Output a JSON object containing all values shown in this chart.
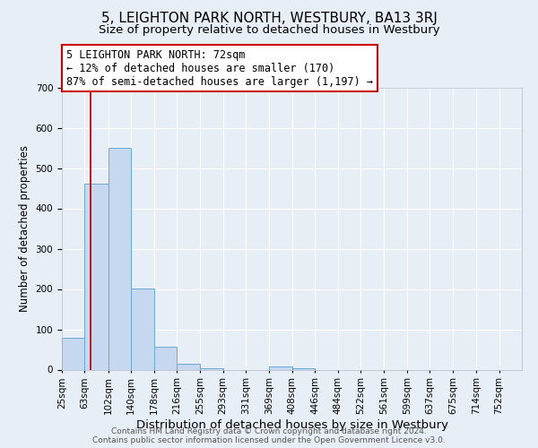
{
  "title": "5, LEIGHTON PARK NORTH, WESTBURY, BA13 3RJ",
  "subtitle": "Size of property relative to detached houses in Westbury",
  "xlabel": "Distribution of detached houses by size in Westbury",
  "ylabel": "Number of detached properties",
  "bin_edges": [
    25,
    63,
    102,
    140,
    178,
    216,
    255,
    293,
    331,
    369,
    408,
    446,
    484,
    522,
    561,
    599,
    637,
    675,
    714,
    752,
    790
  ],
  "bar_heights": [
    78,
    462,
    550,
    202,
    57,
    15,
    3,
    0,
    0,
    7,
    3,
    0,
    0,
    0,
    0,
    0,
    0,
    0,
    0,
    0
  ],
  "bar_color": "#c5d8ef",
  "bar_edge_color": "#6aaad4",
  "property_size": 72,
  "red_line_color": "#cc0000",
  "annotation_text": "5 LEIGHTON PARK NORTH: 72sqm\n← 12% of detached houses are smaller (170)\n87% of semi-detached houses are larger (1,197) →",
  "annotation_box_color": "#ffffff",
  "annotation_box_edge_color": "#cc0000",
  "ylim": [
    0,
    700
  ],
  "yticks": [
    0,
    100,
    200,
    300,
    400,
    500,
    600,
    700
  ],
  "bg_color": "#e8eef5",
  "plot_bg_color": "#e8eef5",
  "grid_color": "#ffffff",
  "footer_line1": "Contains HM Land Registry data © Crown copyright and database right 2024.",
  "footer_line2": "Contains public sector information licensed under the Open Government Licence v3.0.",
  "title_fontsize": 11,
  "subtitle_fontsize": 9.5,
  "xlabel_fontsize": 9.5,
  "ylabel_fontsize": 8.5,
  "annotation_fontsize": 8.5,
  "footer_fontsize": 6.5,
  "tick_fontsize": 7.5
}
